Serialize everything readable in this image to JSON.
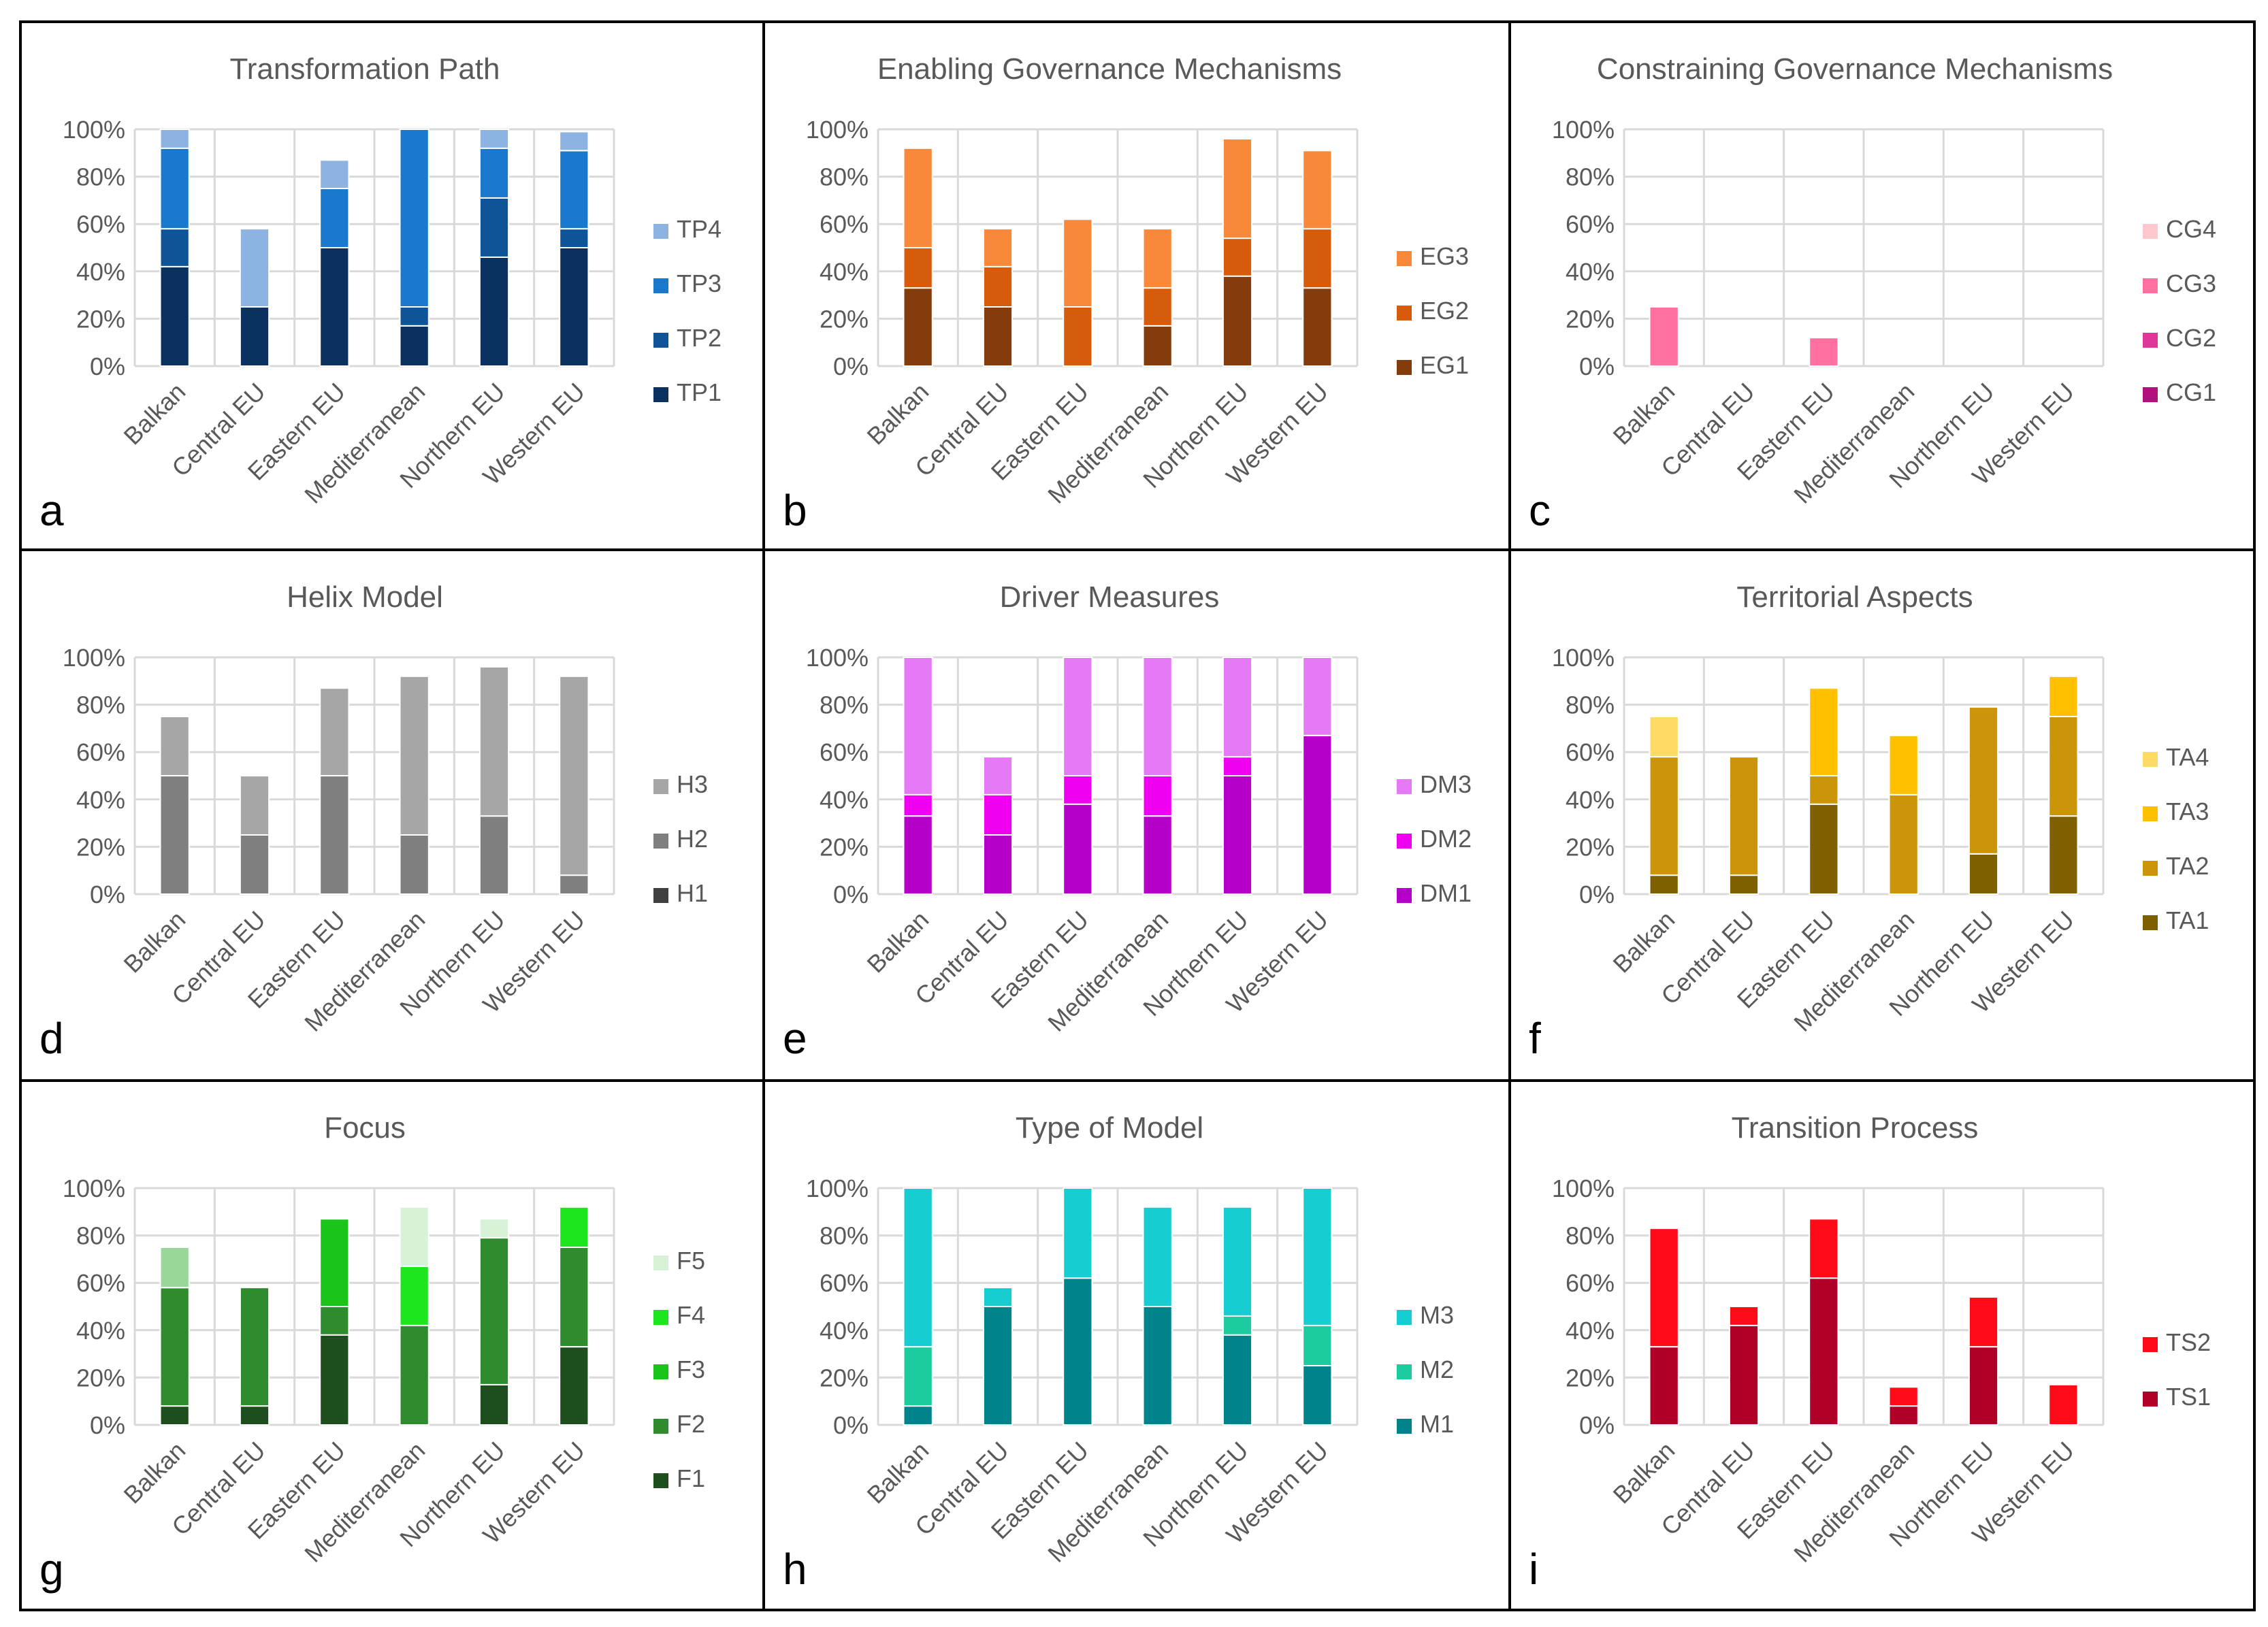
{
  "chart_data": [
    {
      "panel_label": "a",
      "type": "bar",
      "stacked": true,
      "title": "Transformation Path",
      "categories": [
        "Balkan",
        "Central EU",
        "Eastern EU",
        "Mediterranean",
        "Northern EU",
        "Western EU"
      ],
      "ylim": [
        0,
        100
      ],
      "yticks": [
        "0%",
        "20%",
        "40%",
        "60%",
        "80%",
        "100%"
      ],
      "grid": true,
      "legend_position": "right",
      "series": [
        {
          "name": "TP1",
          "color": "#0b3160",
          "values": [
            42,
            25,
            50,
            17,
            46,
            50
          ]
        },
        {
          "name": "TP2",
          "color": "#0f5499",
          "values": [
            16,
            0,
            0,
            8,
            25,
            8
          ]
        },
        {
          "name": "TP3",
          "color": "#1a79cc",
          "values": [
            34,
            0,
            25,
            75,
            21,
            33
          ]
        },
        {
          "name": "TP4",
          "color": "#8db3e2",
          "values": [
            8,
            33,
            12,
            0,
            8,
            8
          ]
        }
      ]
    },
    {
      "panel_label": "b",
      "type": "bar",
      "stacked": true,
      "title": "Enabling Governance Mechanisms",
      "categories": [
        "Balkan",
        "Central EU",
        "Eastern EU",
        "Mediterranean",
        "Northern EU",
        "Western EU"
      ],
      "ylim": [
        0,
        100
      ],
      "yticks": [
        "0%",
        "20%",
        "40%",
        "60%",
        "80%",
        "100%"
      ],
      "grid": true,
      "legend_position": "right",
      "series": [
        {
          "name": "EG1",
          "color": "#843c0c",
          "values": [
            33,
            25,
            0,
            17,
            38,
            33
          ]
        },
        {
          "name": "EG2",
          "color": "#d65c0c",
          "values": [
            17,
            17,
            25,
            16,
            16,
            25
          ]
        },
        {
          "name": "EG3",
          "color": "#f8893a",
          "values": [
            42,
            16,
            37,
            25,
            42,
            33
          ]
        }
      ]
    },
    {
      "panel_label": "c",
      "type": "bar",
      "stacked": true,
      "title": "Constraining Governance Mechanisms",
      "categories": [
        "Balkan",
        "Central EU",
        "Eastern EU",
        "Mediterranean",
        "Northern EU",
        "Western EU"
      ],
      "ylim": [
        0,
        100
      ],
      "yticks": [
        "0%",
        "20%",
        "40%",
        "60%",
        "80%",
        "100%"
      ],
      "grid": true,
      "legend_position": "right",
      "series": [
        {
          "name": "CG1",
          "color": "#b0117f",
          "values": [
            0,
            0,
            0,
            0,
            0,
            0
          ]
        },
        {
          "name": "CG2",
          "color": "#e0369a",
          "values": [
            0,
            0,
            0,
            0,
            0,
            0
          ]
        },
        {
          "name": "CG3",
          "color": "#ff6f9f",
          "values": [
            25,
            0,
            12,
            0,
            0,
            0
          ]
        },
        {
          "name": "CG4",
          "color": "#ffc8cf",
          "values": [
            0,
            0,
            0,
            0,
            0,
            0
          ]
        }
      ]
    },
    {
      "panel_label": "d",
      "type": "bar",
      "stacked": true,
      "title": "Helix Model",
      "categories": [
        "Balkan",
        "Central EU",
        "Eastern EU",
        "Mediterranean",
        "Northern EU",
        "Western EU"
      ],
      "ylim": [
        0,
        100
      ],
      "yticks": [
        "0%",
        "20%",
        "40%",
        "60%",
        "80%",
        "100%"
      ],
      "grid": true,
      "legend_position": "right",
      "series": [
        {
          "name": "H1",
          "color": "#404040",
          "values": [
            0,
            0,
            0,
            0,
            0,
            0
          ]
        },
        {
          "name": "H2",
          "color": "#7f7f7f",
          "values": [
            50,
            25,
            50,
            25,
            33,
            8
          ]
        },
        {
          "name": "H3",
          "color": "#a6a6a6",
          "values": [
            25,
            25,
            37,
            67,
            63,
            84
          ]
        }
      ]
    },
    {
      "panel_label": "e",
      "type": "bar",
      "stacked": true,
      "title": "Driver Measures",
      "categories": [
        "Balkan",
        "Central EU",
        "Eastern EU",
        "Mediterranean",
        "Northern EU",
        "Western EU"
      ],
      "ylim": [
        0,
        100
      ],
      "yticks": [
        "0%",
        "20%",
        "40%",
        "60%",
        "80%",
        "100%"
      ],
      "grid": true,
      "legend_position": "right",
      "series": [
        {
          "name": "DM1",
          "color": "#b400c8",
          "values": [
            33,
            25,
            38,
            33,
            50,
            67
          ]
        },
        {
          "name": "DM2",
          "color": "#f000f0",
          "values": [
            9,
            17,
            12,
            17,
            8,
            0
          ]
        },
        {
          "name": "DM3",
          "color": "#e679f5",
          "values": [
            58,
            16,
            50,
            50,
            42,
            33
          ]
        }
      ]
    },
    {
      "panel_label": "f",
      "type": "bar",
      "stacked": true,
      "title": "Territorial Aspects",
      "categories": [
        "Balkan",
        "Central EU",
        "Eastern EU",
        "Mediterranean",
        "Northern EU",
        "Western EU"
      ],
      "ylim": [
        0,
        100
      ],
      "yticks": [
        "0%",
        "20%",
        "40%",
        "60%",
        "80%",
        "100%"
      ],
      "grid": true,
      "legend_position": "right",
      "series": [
        {
          "name": "TA1",
          "color": "#7f6000",
          "values": [
            8,
            8,
            38,
            0,
            17,
            33
          ]
        },
        {
          "name": "TA2",
          "color": "#cc9409",
          "values": [
            50,
            50,
            12,
            42,
            62,
            42
          ]
        },
        {
          "name": "TA3",
          "color": "#ffc000",
          "values": [
            0,
            0,
            37,
            25,
            0,
            17
          ]
        },
        {
          "name": "TA4",
          "color": "#ffd966",
          "values": [
            17,
            0,
            0,
            0,
            0,
            0
          ]
        }
      ]
    },
    {
      "panel_label": "g",
      "type": "bar",
      "stacked": true,
      "title": "Focus",
      "categories": [
        "Balkan",
        "Central EU",
        "Eastern EU",
        "Mediterranean",
        "Northern EU",
        "Western EU"
      ],
      "ylim": [
        0,
        100
      ],
      "yticks": [
        "0%",
        "20%",
        "40%",
        "60%",
        "80%",
        "100%"
      ],
      "grid": true,
      "legend_position": "right",
      "series": [
        {
          "name": "F1",
          "color": "#1e4d1e",
          "values": [
            8,
            8,
            38,
            0,
            17,
            33
          ]
        },
        {
          "name": "F2",
          "color": "#2e8b2e",
          "values": [
            50,
            50,
            12,
            42,
            62,
            42
          ]
        },
        {
          "name": "F3",
          "color": "#19c519",
          "values": [
            0,
            0,
            37,
            0,
            0,
            0
          ]
        },
        {
          "name": "F4",
          "color": "#1ee61e",
          "values": [
            0,
            0,
            0,
            25,
            0,
            17
          ]
        },
        {
          "name": "F5",
          "color": "#d8f2d8",
          "values": [
            8,
            0,
            0,
            25,
            8,
            0
          ]
        }
      ],
      "extra_segments": [
        {
          "category": "Balkan",
          "color": "#99d699",
          "from": 58,
          "to": 75
        }
      ]
    },
    {
      "panel_label": "h",
      "type": "bar",
      "stacked": true,
      "title": "Type of Model",
      "categories": [
        "Balkan",
        "Central EU",
        "Eastern EU",
        "Mediterranean",
        "Northern EU",
        "Western EU"
      ],
      "ylim": [
        0,
        100
      ],
      "yticks": [
        "0%",
        "20%",
        "40%",
        "60%",
        "80%",
        "100%"
      ],
      "grid": true,
      "legend_position": "right",
      "series": [
        {
          "name": "M1",
          "color": "#00838a",
          "values": [
            8,
            50,
            62,
            50,
            38,
            25
          ]
        },
        {
          "name": "M2",
          "color": "#1ccc9e",
          "values": [
            25,
            0,
            0,
            0,
            8,
            17
          ]
        },
        {
          "name": "M3",
          "color": "#16cdd2",
          "values": [
            67,
            8,
            38,
            42,
            46,
            58
          ]
        }
      ]
    },
    {
      "panel_label": "i",
      "type": "bar",
      "stacked": true,
      "title": "Transition Process",
      "categories": [
        "Balkan",
        "Central EU",
        "Eastern EU",
        "Mediterranean",
        "Northern EU",
        "Western EU"
      ],
      "ylim": [
        0,
        100
      ],
      "yticks": [
        "0%",
        "20%",
        "40%",
        "60%",
        "80%",
        "100%"
      ],
      "grid": true,
      "legend_position": "right",
      "series": [
        {
          "name": "TS1",
          "color": "#b0002a",
          "values": [
            33,
            42,
            62,
            8,
            33,
            0
          ]
        },
        {
          "name": "TS2",
          "color": "#ff0a17",
          "values": [
            50,
            8,
            25,
            8,
            21,
            17
          ]
        }
      ]
    }
  ]
}
